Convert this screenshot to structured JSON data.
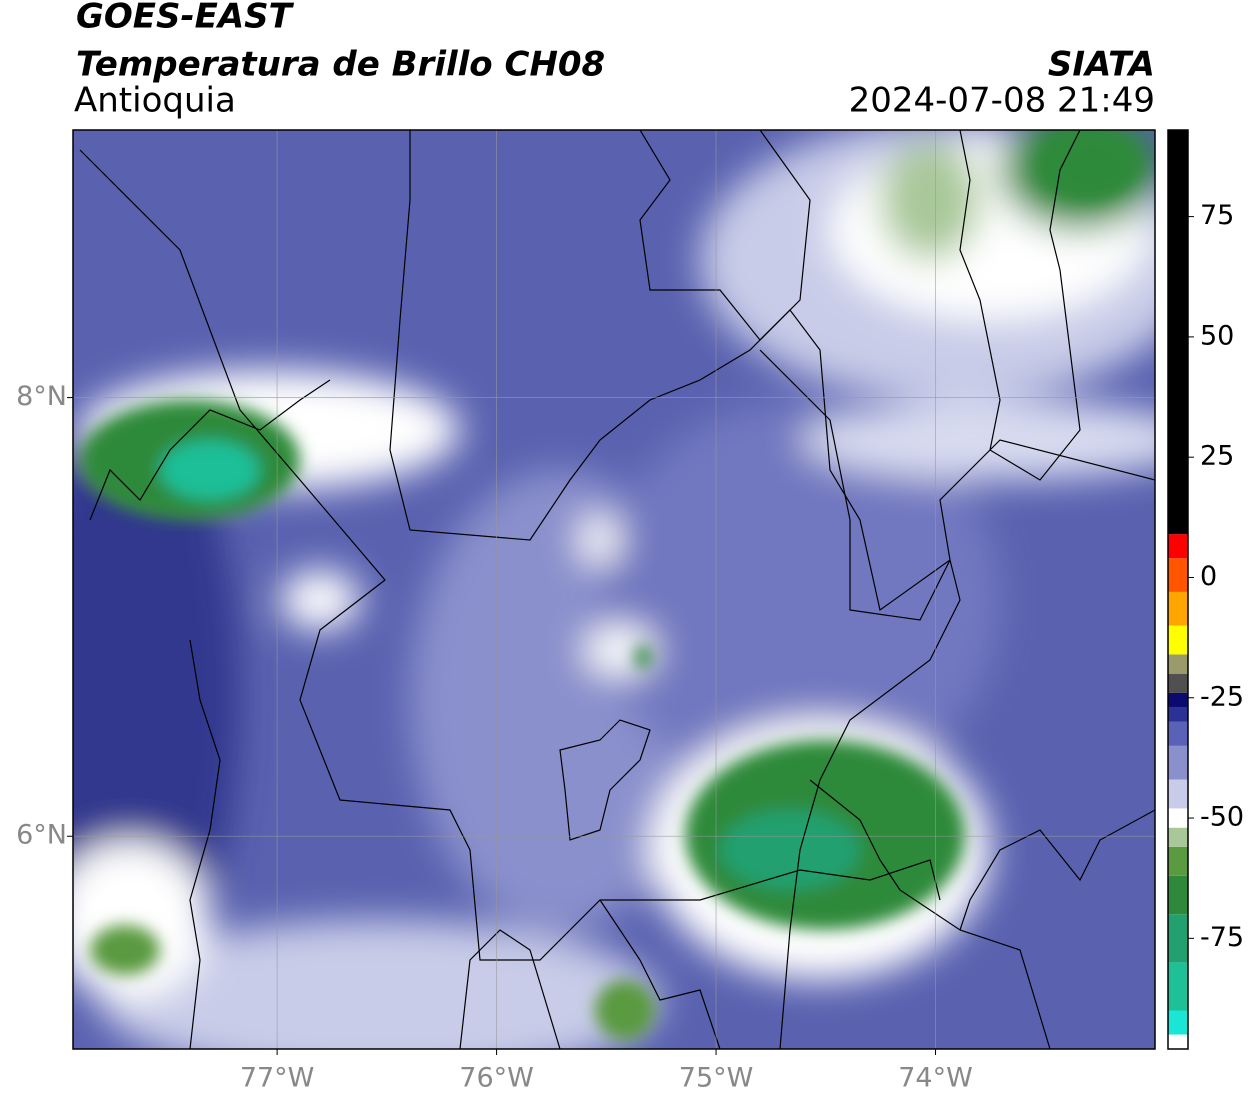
{
  "header": {
    "title": "GOES-EAST",
    "subtitle": "Temperatura de Brillo CH08",
    "region": "Antioquia",
    "source": "SIATA",
    "timestamp": "2024-07-08 21:49"
  },
  "map": {
    "xlim": [
      -77.93,
      -73.0
    ],
    "ylim": [
      5.03,
      9.22
    ],
    "xticks": [
      {
        "value": -77,
        "label": "77°W"
      },
      {
        "value": -76,
        "label": "76°W"
      },
      {
        "value": -75,
        "label": "75°W"
      },
      {
        "value": -74,
        "label": "74°W"
      }
    ],
    "yticks": [
      {
        "value": 6,
        "label": "6°N"
      },
      {
        "value": 8,
        "label": "8°N"
      }
    ],
    "grid": true
  },
  "colorbar": {
    "clim": [
      -98,
      93
    ],
    "ticks": [
      -75,
      -50,
      -25,
      0,
      25,
      50,
      75
    ],
    "segments": [
      {
        "from": -98,
        "to": -95,
        "color": "#ffffff"
      },
      {
        "from": -95,
        "to": -90,
        "color": "#19e6d4"
      },
      {
        "from": -90,
        "to": -80,
        "color": "#1fbf98"
      },
      {
        "from": -80,
        "to": -70,
        "color": "#23a070"
      },
      {
        "from": -70,
        "to": -62,
        "color": "#2e8a3a"
      },
      {
        "from": -62,
        "to": -56,
        "color": "#5a9a40"
      },
      {
        "from": -56,
        "to": -52,
        "color": "#a8c898"
      },
      {
        "from": -52,
        "to": -48,
        "color": "#ffffff"
      },
      {
        "from": -48,
        "to": -42,
        "color": "#c8cce8"
      },
      {
        "from": -42,
        "to": -35,
        "color": "#8a90cc"
      },
      {
        "from": -35,
        "to": -30,
        "color": "#5a62b8"
      },
      {
        "from": -30,
        "to": -27,
        "color": "#2a3296"
      },
      {
        "from": -27,
        "to": -24,
        "color": "#0a0a70"
      },
      {
        "from": -24,
        "to": -20,
        "color": "#505050"
      },
      {
        "from": -20,
        "to": -16,
        "color": "#9a9a6a"
      },
      {
        "from": -16,
        "to": -10,
        "color": "#ffff00"
      },
      {
        "from": -10,
        "to": -3,
        "color": "#ffa500"
      },
      {
        "from": -3,
        "to": 4,
        "color": "#ff5500"
      },
      {
        "from": 4,
        "to": 9,
        "color": "#ff0000"
      },
      {
        "from": 9,
        "to": 93,
        "color": "#000000"
      }
    ]
  }
}
